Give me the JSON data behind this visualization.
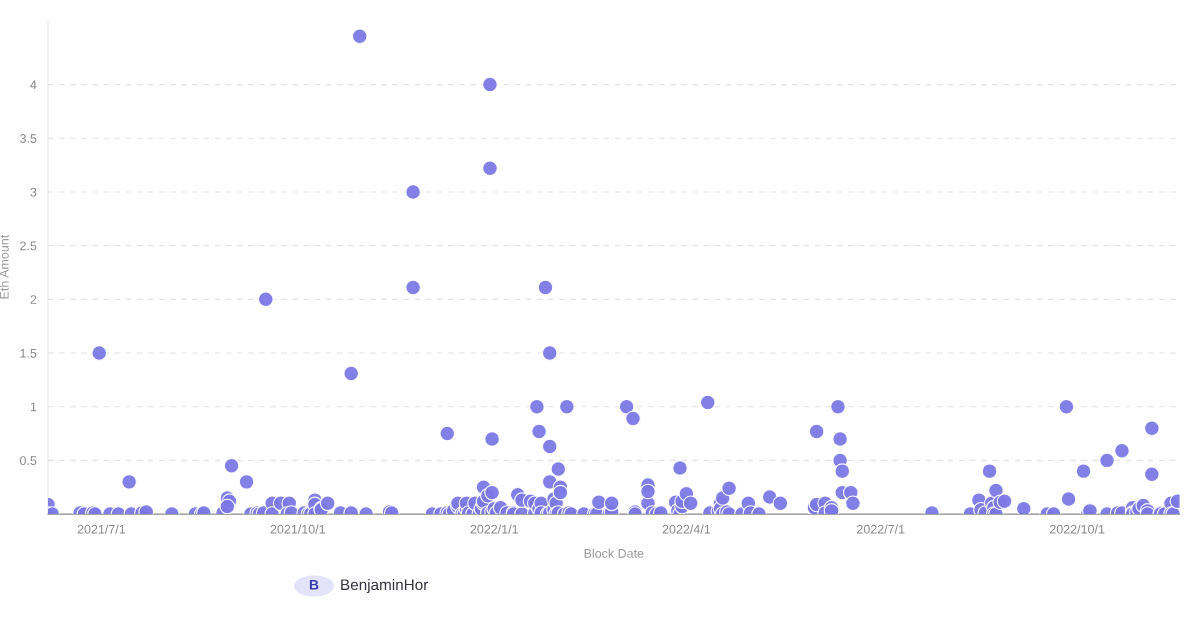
{
  "chart_data": {
    "type": "scatter",
    "xlabel": "Block Date",
    "ylabel": "Eth Amount",
    "annotations": [
      "B",
      "BenjaminHor"
    ],
    "xlim": [
      "2021-06-06",
      "2022-11-18"
    ],
    "ylim": [
      0,
      4.6
    ],
    "xticks": [
      {
        "value": "2021-07-01",
        "label": "2021/7/1"
      },
      {
        "value": "2021-10-01",
        "label": "2021/10/1"
      },
      {
        "value": "2022-01-01",
        "label": "2022/1/1"
      },
      {
        "value": "2022-04-01",
        "label": "2022/4/1"
      },
      {
        "value": "2022-07-01",
        "label": "2022/7/1"
      },
      {
        "value": "2022-10-01",
        "label": "2022/10/1"
      }
    ],
    "yticks": [
      0.5,
      1,
      1.5,
      2,
      2.5,
      3,
      3.5,
      4
    ],
    "grid": "y",
    "marker": "circle",
    "legend": false,
    "series": [
      {
        "color": "#7b78e5",
        "x": [
          "2021-06-06",
          "2021-06-06",
          "2021-06-08",
          "2021-06-21",
          "2021-06-23",
          "2021-06-27",
          "2021-06-28",
          "2021-06-30",
          "2021-07-05",
          "2021-07-09",
          "2021-07-14",
          "2021-07-15",
          "2021-07-20",
          "2021-07-22",
          "2021-08-03",
          "2021-08-14",
          "2021-08-17",
          "2021-08-18",
          "2021-08-27",
          "2021-08-29",
          "2021-08-30",
          "2021-08-29",
          "2021-08-31",
          "2021-09-07",
          "2021-09-09",
          "2021-09-12",
          "2021-09-13",
          "2021-09-15",
          "2021-09-16",
          "2021-09-19",
          "2021-09-19",
          "2021-09-23",
          "2021-09-27",
          "2021-09-26",
          "2021-09-28",
          "2021-10-04",
          "2021-10-06",
          "2021-10-07",
          "2021-10-09",
          "2021-10-09",
          "2021-10-09",
          "2021-10-12",
          "2021-10-12",
          "2021-10-15",
          "2021-10-21",
          "2021-10-26",
          "2021-10-26",
          "2021-10-30",
          "2021-11-02",
          "2021-11-13",
          "2021-11-14",
          "2021-11-24",
          "2021-11-24",
          "2021-12-03",
          "2021-12-07",
          "2021-12-10",
          "2021-12-10",
          "2021-12-11",
          "2021-12-13",
          "2021-12-15",
          "2021-12-15",
          "2021-12-17",
          "2021-12-18",
          "2021-12-19",
          "2021-12-19",
          "2021-12-20",
          "2021-12-22",
          "2021-12-23",
          "2021-12-25",
          "2021-12-26",
          "2021-12-27",
          "2021-12-27",
          "2021-12-27",
          "2021-12-29",
          "2021-12-29",
          "2021-12-30",
          "2021-12-30",
          "2021-12-31",
          "2021-12-31",
          "2021-12-31",
          "2022-01-01",
          "2022-01-02",
          "2022-01-04",
          "2022-01-07",
          "2022-01-10",
          "2022-01-10",
          "2022-01-12",
          "2022-01-14",
          "2022-01-14",
          "2022-01-18",
          "2022-01-20",
          "2022-01-20",
          "2022-01-21",
          "2022-01-22",
          "2022-01-22",
          "2022-01-23",
          "2022-01-23",
          "2022-01-25",
          "2022-01-26",
          "2022-01-27",
          "2022-01-27",
          "2022-01-27",
          "2022-01-27",
          "2022-01-29",
          "2022-01-29",
          "2022-01-30",
          "2022-01-30",
          "2022-01-31",
          "2022-01-31",
          "2022-02-01",
          "2022-02-01",
          "2022-02-04",
          "2022-02-03",
          "2022-02-05",
          "2022-02-06",
          "2022-02-12",
          "2022-02-17",
          "2022-02-18",
          "2022-02-19",
          "2022-02-24",
          "2022-02-25",
          "2022-02-25",
          "2022-03-04",
          "2022-03-07",
          "2022-03-08",
          "2022-03-08",
          "2022-03-14",
          "2022-03-14",
          "2022-03-14",
          "2022-03-16",
          "2022-03-18",
          "2022-03-20",
          "2022-03-27",
          "2022-03-28",
          "2022-03-29",
          "2022-03-29",
          "2022-03-30",
          "2022-03-30",
          "2022-04-01",
          "2022-04-03",
          "2022-04-11",
          "2022-04-12",
          "2022-04-16",
          "2022-04-17",
          "2022-04-17",
          "2022-04-18",
          "2022-04-18",
          "2022-04-20",
          "2022-04-21",
          "2022-04-21",
          "2022-04-27",
          "2022-04-30",
          "2022-05-01",
          "2022-05-05",
          "2022-05-10",
          "2022-05-15",
          "2022-05-31",
          "2022-05-31",
          "2022-06-01",
          "2022-06-01",
          "2022-06-05",
          "2022-06-05",
          "2022-06-08",
          "2022-06-08",
          "2022-06-11",
          "2022-06-12",
          "2022-06-12",
          "2022-06-13",
          "2022-06-13",
          "2022-06-17",
          "2022-06-18",
          "2022-07-25",
          "2022-08-12",
          "2022-08-16",
          "2022-08-17",
          "2022-08-19",
          "2022-08-21",
          "2022-08-22",
          "2022-08-23",
          "2022-08-23",
          "2022-08-24",
          "2022-08-24",
          "2022-08-26",
          "2022-08-28",
          "2022-09-06",
          "2022-09-17",
          "2022-09-20",
          "2022-09-26",
          "2022-09-27",
          "2022-10-04",
          "2022-10-06",
          "2022-10-07",
          "2022-10-15",
          "2022-10-15",
          "2022-10-20",
          "2022-10-22",
          "2022-10-22",
          "2022-10-27",
          "2022-10-27",
          "2022-10-27",
          "2022-10-29",
          "2022-10-30",
          "2022-11-01",
          "2022-11-03",
          "2022-11-03",
          "2022-11-05",
          "2022-11-05",
          "2022-11-09",
          "2022-11-09",
          "2022-11-11",
          "2022-11-14",
          "2022-11-14",
          "2022-11-15",
          "2022-11-17"
        ],
        "values": [
          0.09,
          0,
          0,
          0.01,
          0,
          0.01,
          0,
          1.5,
          0,
          0,
          0.3,
          0,
          0.01,
          0.02,
          0,
          0,
          0,
          0.01,
          0.01,
          0.15,
          0.12,
          0.07,
          0.45,
          0.3,
          0,
          0.01,
          0,
          0.01,
          2.0,
          0.1,
          0,
          0.1,
          0.1,
          0,
          0.01,
          0.01,
          0,
          0,
          0.13,
          0.09,
          0,
          0.05,
          0.04,
          0.1,
          0.01,
          1.31,
          0.01,
          4.45,
          0,
          0.02,
          0.01,
          3.0,
          2.11,
          0,
          0,
          0.75,
          0.01,
          0,
          0.03,
          0.07,
          0.1,
          0,
          0,
          0.05,
          0.1,
          0.01,
          0,
          0.1,
          0,
          0.05,
          0.25,
          0.1,
          0.12,
          0.17,
          0.01,
          4.0,
          3.22,
          0.02,
          0.7,
          0.2,
          0.05,
          0.01,
          0.06,
          0.01,
          0.01,
          0,
          0.18,
          0,
          0.13,
          0.12,
          0.01,
          0.1,
          1.0,
          0.77,
          0.05,
          0.1,
          0.01,
          2.11,
          0,
          0.3,
          0.01,
          1.5,
          0.63,
          0.04,
          0.14,
          0.1,
          0,
          0.42,
          0.01,
          0.25,
          0.2,
          1.0,
          0,
          0.01,
          0,
          0,
          0,
          0,
          0.11,
          0.01,
          0.02,
          0.1,
          1.0,
          0.89,
          0.02,
          0,
          0.1,
          0.27,
          0.21,
          0.01,
          0,
          0.01,
          0.11,
          0.03,
          0.43,
          0,
          0.07,
          0.12,
          0.19,
          0.1,
          1.04,
          0.01,
          0.03,
          0.1,
          0.05,
          0.15,
          0,
          0.02,
          0.24,
          0,
          0,
          0.1,
          0.01,
          0,
          0.16,
          0.1,
          0.05,
          0.06,
          0.77,
          0.09,
          0.1,
          0.01,
          0.06,
          0.03,
          1.0,
          0.7,
          0.5,
          0.4,
          0.2,
          0.2,
          0.1,
          0.01,
          0,
          0.13,
          0.04,
          0.01,
          0.4,
          0.1,
          0.06,
          0,
          0.22,
          0,
          0.11,
          0.12,
          0.05,
          0,
          0,
          1.0,
          0.14,
          0.4,
          0,
          0.03,
          0.5,
          0,
          0.01,
          0.59,
          0.01,
          0.06,
          0.01,
          0,
          0.02,
          0.05,
          0.08,
          0.03,
          0,
          0.8,
          0.37,
          0.01,
          0,
          0,
          0.1,
          0,
          0,
          0.12
        ]
      }
    ]
  }
}
